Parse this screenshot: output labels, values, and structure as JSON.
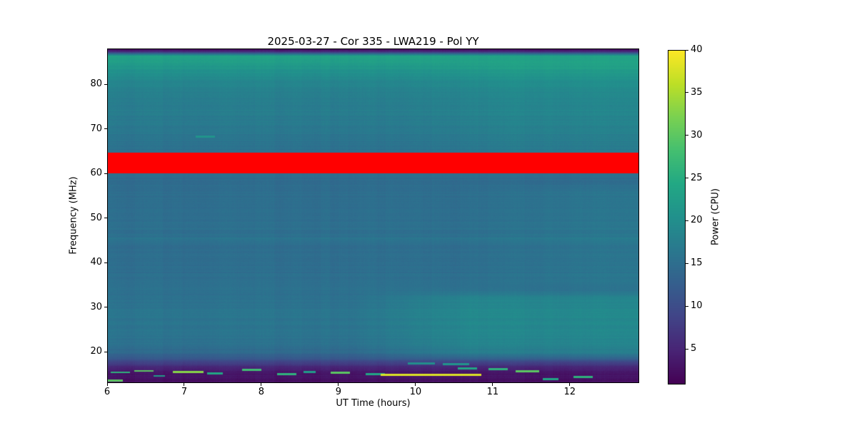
{
  "chart_data": {
    "type": "heatmap",
    "title": "2025-03-27 - Cor 335 - LWA219 - Pol YY",
    "xlabel": "UT Time (hours)",
    "ylabel": "Frequency (MHz)",
    "colorbar_label": "Power (CPU)",
    "x_range": [
      6.0,
      12.9
    ],
    "x_ticks": [
      6,
      7,
      8,
      9,
      10,
      11,
      12
    ],
    "y_range": [
      13,
      88
    ],
    "y_ticks": [
      20,
      30,
      40,
      50,
      60,
      70,
      80
    ],
    "color_range": [
      1,
      40
    ],
    "colorbar_ticks": [
      5,
      10,
      15,
      20,
      25,
      30,
      35,
      40
    ],
    "colormap_name": "viridis",
    "background_color": "#ffffff",
    "grid": false,
    "legend": false,
    "over_color": "#ff0000",
    "over_band": {
      "freq_min": 60.0,
      "freq_max": 64.6
    },
    "colormap_stops": [
      [
        0.0,
        "#440154"
      ],
      [
        0.1,
        "#482475"
      ],
      [
        0.2,
        "#414487"
      ],
      [
        0.3,
        "#355f8d"
      ],
      [
        0.4,
        "#2a788e"
      ],
      [
        0.5,
        "#21918c"
      ],
      [
        0.6,
        "#22a884"
      ],
      [
        0.7,
        "#44bf70"
      ],
      [
        0.8,
        "#7ad151"
      ],
      [
        0.9,
        "#bddf26"
      ],
      [
        1.0,
        "#fde725"
      ]
    ],
    "background_profile": [
      [
        13.0,
        2.4
      ],
      [
        13.8,
        2.6
      ],
      [
        14.6,
        3.0
      ],
      [
        15.4,
        3.4
      ],
      [
        16.2,
        4.4
      ],
      [
        17.0,
        6.5
      ],
      [
        17.8,
        9.0
      ],
      [
        18.6,
        12.0
      ],
      [
        19.5,
        13.8
      ],
      [
        21.0,
        15.2
      ],
      [
        24.0,
        16.0
      ],
      [
        28.0,
        16.2
      ],
      [
        32.0,
        15.6
      ],
      [
        36.0,
        15.1
      ],
      [
        40.0,
        15.0
      ],
      [
        44.0,
        15.0
      ],
      [
        45.4,
        16.2
      ],
      [
        46.2,
        15.1
      ],
      [
        48.0,
        15.2
      ],
      [
        52.0,
        15.1
      ],
      [
        56.0,
        14.9
      ],
      [
        58.5,
        14.7
      ],
      [
        60.0,
        15.0
      ],
      [
        64.5,
        15.3
      ],
      [
        66.0,
        15.6
      ],
      [
        68.0,
        16.2
      ],
      [
        71.0,
        16.9
      ],
      [
        74.0,
        17.3
      ],
      [
        77.0,
        17.8
      ],
      [
        80.0,
        18.6
      ],
      [
        82.5,
        20.0
      ],
      [
        84.5,
        22.5
      ],
      [
        86.3,
        23.2
      ],
      [
        87.0,
        11.0
      ],
      [
        87.5,
        3.6
      ],
      [
        88.0,
        2.4
      ]
    ],
    "enhancements": [
      {
        "name": "low-band-evening-brightening",
        "freq_min": 17.5,
        "freq_max": 34.0,
        "time_min": 9.2,
        "time_max": 12.9,
        "power_boost": 3.0
      },
      {
        "name": "high-band-evening-brightening",
        "freq_min": 62.0,
        "freq_max": 86.0,
        "time_min": 9.8,
        "time_max": 12.9,
        "power_boost": 1.4
      },
      {
        "name": "mid-band-evening-brightening",
        "freq_min": 34.0,
        "freq_max": 58.0,
        "time_min": 10.5,
        "time_max": 12.9,
        "power_boost": 1.0
      }
    ],
    "rfi_streaks": [
      {
        "t0": 6.0,
        "t1": 6.2,
        "freq": 13.6,
        "power": 30
      },
      {
        "t0": 6.05,
        "t1": 6.3,
        "freq": 15.4,
        "power": 26
      },
      {
        "t0": 6.35,
        "t1": 6.6,
        "freq": 15.7,
        "power": 30
      },
      {
        "t0": 6.6,
        "t1": 6.75,
        "freq": 14.6,
        "power": 22
      },
      {
        "t0": 6.85,
        "t1": 7.25,
        "freq": 15.5,
        "power": 33
      },
      {
        "t0": 7.3,
        "t1": 7.5,
        "freq": 15.2,
        "power": 24
      },
      {
        "t0": 7.15,
        "t1": 7.4,
        "freq": 68.3,
        "power": 21
      },
      {
        "t0": 7.75,
        "t1": 8.0,
        "freq": 16.0,
        "power": 28
      },
      {
        "t0": 8.2,
        "t1": 8.45,
        "freq": 15.0,
        "power": 26
      },
      {
        "t0": 8.55,
        "t1": 8.7,
        "freq": 15.5,
        "power": 22
      },
      {
        "t0": 8.9,
        "t1": 9.15,
        "freq": 15.3,
        "power": 30
      },
      {
        "t0": 9.35,
        "t1": 9.6,
        "freq": 15.0,
        "power": 24
      },
      {
        "t0": 9.55,
        "t1": 10.85,
        "freq": 14.85,
        "power": 38
      },
      {
        "t0": 9.9,
        "t1": 10.25,
        "freq": 17.4,
        "power": 20
      },
      {
        "t0": 10.35,
        "t1": 10.7,
        "freq": 17.2,
        "power": 21
      },
      {
        "t0": 10.55,
        "t1": 10.8,
        "freq": 16.3,
        "power": 24
      },
      {
        "t0": 10.95,
        "t1": 11.2,
        "freq": 16.1,
        "power": 26
      },
      {
        "t0": 11.3,
        "t1": 11.6,
        "freq": 15.6,
        "power": 30
      },
      {
        "t0": 11.65,
        "t1": 11.85,
        "freq": 13.9,
        "power": 24
      },
      {
        "t0": 12.05,
        "t1": 12.3,
        "freq": 14.4,
        "power": 26
      }
    ]
  }
}
